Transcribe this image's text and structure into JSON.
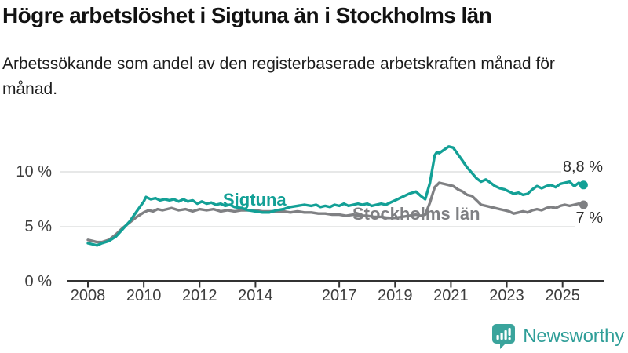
{
  "header": {
    "title": "Högre arbetslöshet i Sigtuna än i Stockholms län",
    "subtitle": "Arbetssökande som andel av den registerbaserade arbetskraften månad för månad."
  },
  "colors": {
    "accent_teal": "#13a096",
    "line_gray": "#7f8083",
    "gridline": "#dfe0e1",
    "axis": "#333333",
    "brand_teal": "#3aa49c"
  },
  "chart_data": {
    "type": "line",
    "unit": "%",
    "grid": "horizontal",
    "x_range": [
      2008,
      2025.75
    ],
    "y_range": [
      0,
      12.5
    ],
    "x_ticks": [
      2008,
      2010,
      2012,
      2014,
      2017,
      2019,
      2021,
      2023,
      2025
    ],
    "y_ticks": [
      {
        "value": 0,
        "label": "0 %"
      },
      {
        "value": 5,
        "label": "5 %"
      },
      {
        "value": 10,
        "label": "10 %"
      }
    ],
    "series": [
      {
        "name": "Stockholms län",
        "color": "#7f8083",
        "end_label": "7 %",
        "points": [
          [
            2008.0,
            3.8
          ],
          [
            2008.17,
            3.7
          ],
          [
            2008.33,
            3.6
          ],
          [
            2008.5,
            3.6
          ],
          [
            2008.75,
            3.8
          ],
          [
            2009.0,
            4.3
          ],
          [
            2009.25,
            4.9
          ],
          [
            2009.5,
            5.4
          ],
          [
            2009.75,
            5.9
          ],
          [
            2010.0,
            6.3
          ],
          [
            2010.17,
            6.5
          ],
          [
            2010.33,
            6.4
          ],
          [
            2010.5,
            6.6
          ],
          [
            2010.67,
            6.5
          ],
          [
            2010.83,
            6.6
          ],
          [
            2011.0,
            6.7
          ],
          [
            2011.25,
            6.5
          ],
          [
            2011.5,
            6.6
          ],
          [
            2011.75,
            6.4
          ],
          [
            2012.0,
            6.6
          ],
          [
            2012.25,
            6.5
          ],
          [
            2012.5,
            6.6
          ],
          [
            2012.75,
            6.4
          ],
          [
            2013.0,
            6.5
          ],
          [
            2013.25,
            6.4
          ],
          [
            2013.5,
            6.5
          ],
          [
            2013.75,
            6.5
          ],
          [
            2014.0,
            6.5
          ],
          [
            2014.25,
            6.4
          ],
          [
            2014.5,
            6.4
          ],
          [
            2014.75,
            6.4
          ],
          [
            2015.0,
            6.4
          ],
          [
            2015.25,
            6.3
          ],
          [
            2015.5,
            6.4
          ],
          [
            2015.75,
            6.3
          ],
          [
            2016.0,
            6.3
          ],
          [
            2016.25,
            6.2
          ],
          [
            2016.5,
            6.2
          ],
          [
            2016.75,
            6.1
          ],
          [
            2017.0,
            6.1
          ],
          [
            2017.25,
            6.0
          ],
          [
            2017.5,
            6.1
          ],
          [
            2017.75,
            6.0
          ],
          [
            2018.0,
            6.0
          ],
          [
            2018.25,
            5.9
          ],
          [
            2018.5,
            5.9
          ],
          [
            2018.75,
            5.8
          ],
          [
            2019.0,
            5.8
          ],
          [
            2019.25,
            5.9
          ],
          [
            2019.5,
            6.0
          ],
          [
            2019.75,
            6.1
          ],
          [
            2019.92,
            6.0
          ],
          [
            2020.08,
            6.1
          ],
          [
            2020.25,
            7.2
          ],
          [
            2020.42,
            8.6
          ],
          [
            2020.58,
            9.0
          ],
          [
            2020.75,
            8.9
          ],
          [
            2020.92,
            8.8
          ],
          [
            2021.08,
            8.7
          ],
          [
            2021.25,
            8.4
          ],
          [
            2021.42,
            8.2
          ],
          [
            2021.58,
            7.9
          ],
          [
            2021.75,
            7.8
          ],
          [
            2021.92,
            7.4
          ],
          [
            2022.08,
            7.0
          ],
          [
            2022.25,
            6.9
          ],
          [
            2022.42,
            6.8
          ],
          [
            2022.58,
            6.7
          ],
          [
            2022.75,
            6.6
          ],
          [
            2022.92,
            6.5
          ],
          [
            2023.08,
            6.4
          ],
          [
            2023.25,
            6.2
          ],
          [
            2023.42,
            6.3
          ],
          [
            2023.58,
            6.4
          ],
          [
            2023.75,
            6.3
          ],
          [
            2023.92,
            6.5
          ],
          [
            2024.08,
            6.6
          ],
          [
            2024.25,
            6.5
          ],
          [
            2024.42,
            6.7
          ],
          [
            2024.58,
            6.8
          ],
          [
            2024.75,
            6.7
          ],
          [
            2024.92,
            6.9
          ],
          [
            2025.08,
            7.0
          ],
          [
            2025.25,
            6.9
          ],
          [
            2025.42,
            7.0
          ],
          [
            2025.58,
            7.1
          ],
          [
            2025.75,
            7.0
          ]
        ]
      },
      {
        "name": "Sigtuna",
        "color": "#13a096",
        "end_label": "8,8 %",
        "points": [
          [
            2008.0,
            3.5
          ],
          [
            2008.17,
            3.4
          ],
          [
            2008.33,
            3.3
          ],
          [
            2008.5,
            3.5
          ],
          [
            2008.75,
            3.7
          ],
          [
            2009.0,
            4.1
          ],
          [
            2009.25,
            4.8
          ],
          [
            2009.5,
            5.5
          ],
          [
            2009.75,
            6.4
          ],
          [
            2010.0,
            7.3
          ],
          [
            2010.08,
            7.7
          ],
          [
            2010.25,
            7.5
          ],
          [
            2010.42,
            7.6
          ],
          [
            2010.58,
            7.4
          ],
          [
            2010.75,
            7.5
          ],
          [
            2010.92,
            7.4
          ],
          [
            2011.08,
            7.5
          ],
          [
            2011.25,
            7.3
          ],
          [
            2011.42,
            7.5
          ],
          [
            2011.58,
            7.3
          ],
          [
            2011.75,
            7.4
          ],
          [
            2011.92,
            7.1
          ],
          [
            2012.08,
            7.3
          ],
          [
            2012.25,
            7.1
          ],
          [
            2012.42,
            7.2
          ],
          [
            2012.58,
            7.0
          ],
          [
            2012.75,
            7.1
          ],
          [
            2012.92,
            6.9
          ],
          [
            2013.08,
            7.0
          ],
          [
            2013.25,
            6.8
          ],
          [
            2013.5,
            6.7
          ],
          [
            2013.75,
            6.5
          ],
          [
            2014.0,
            6.4
          ],
          [
            2014.25,
            6.3
          ],
          [
            2014.5,
            6.3
          ],
          [
            2014.75,
            6.5
          ],
          [
            2015.0,
            6.6
          ],
          [
            2015.25,
            6.8
          ],
          [
            2015.5,
            6.9
          ],
          [
            2015.75,
            7.0
          ],
          [
            2016.0,
            6.9
          ],
          [
            2016.17,
            7.0
          ],
          [
            2016.33,
            6.8
          ],
          [
            2016.5,
            6.9
          ],
          [
            2016.67,
            6.8
          ],
          [
            2016.83,
            7.0
          ],
          [
            2017.0,
            6.9
          ],
          [
            2017.17,
            7.1
          ],
          [
            2017.33,
            6.9
          ],
          [
            2017.5,
            7.0
          ],
          [
            2017.67,
            7.1
          ],
          [
            2017.83,
            7.0
          ],
          [
            2018.0,
            7.1
          ],
          [
            2018.17,
            6.9
          ],
          [
            2018.33,
            7.0
          ],
          [
            2018.5,
            7.1
          ],
          [
            2018.67,
            7.0
          ],
          [
            2018.83,
            7.2
          ],
          [
            2019.0,
            7.4
          ],
          [
            2019.25,
            7.7
          ],
          [
            2019.5,
            8.0
          ],
          [
            2019.75,
            8.2
          ],
          [
            2019.92,
            7.8
          ],
          [
            2020.08,
            7.5
          ],
          [
            2020.25,
            9.0
          ],
          [
            2020.42,
            11.5
          ],
          [
            2020.5,
            11.8
          ],
          [
            2020.58,
            11.7
          ],
          [
            2020.75,
            12.0
          ],
          [
            2020.92,
            12.3
          ],
          [
            2021.08,
            12.2
          ],
          [
            2021.25,
            11.6
          ],
          [
            2021.42,
            11.0
          ],
          [
            2021.58,
            10.4
          ],
          [
            2021.75,
            9.9
          ],
          [
            2021.92,
            9.4
          ],
          [
            2022.08,
            9.1
          ],
          [
            2022.25,
            9.3
          ],
          [
            2022.42,
            9.0
          ],
          [
            2022.58,
            8.7
          ],
          [
            2022.75,
            8.5
          ],
          [
            2022.92,
            8.4
          ],
          [
            2023.08,
            8.2
          ],
          [
            2023.25,
            8.0
          ],
          [
            2023.42,
            8.1
          ],
          [
            2023.58,
            7.9
          ],
          [
            2023.75,
            8.0
          ],
          [
            2023.92,
            8.4
          ],
          [
            2024.08,
            8.7
          ],
          [
            2024.25,
            8.5
          ],
          [
            2024.42,
            8.7
          ],
          [
            2024.58,
            8.8
          ],
          [
            2024.75,
            8.6
          ],
          [
            2024.92,
            8.9
          ],
          [
            2025.08,
            9.0
          ],
          [
            2025.25,
            9.1
          ],
          [
            2025.42,
            8.7
          ],
          [
            2025.58,
            9.0
          ],
          [
            2025.75,
            8.8
          ]
        ]
      }
    ]
  },
  "footer": {
    "brand": "Newsworthy"
  }
}
